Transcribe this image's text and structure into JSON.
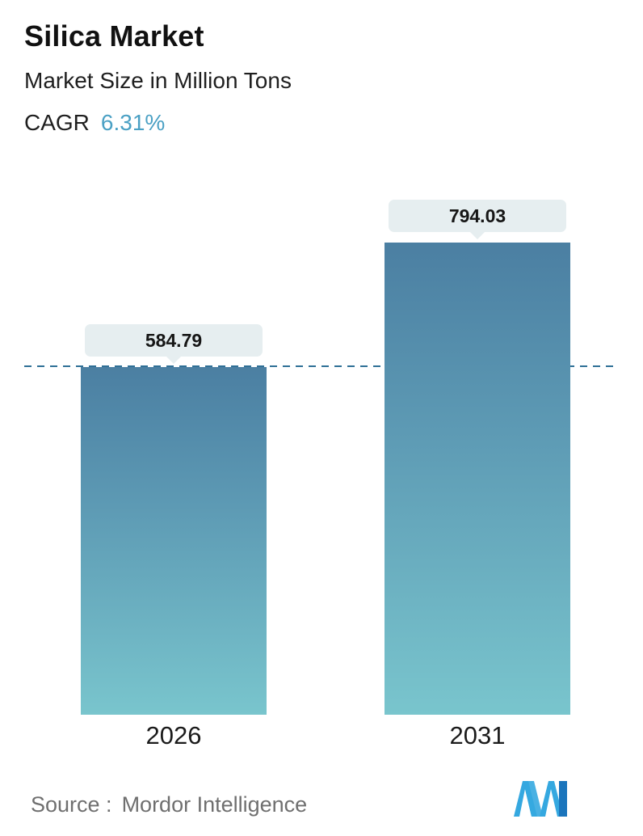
{
  "header": {
    "title": "Silica Market",
    "subtitle": "Market Size in Million Tons",
    "cagr_label": "CAGR",
    "cagr_value": "6.31%"
  },
  "chart_data": {
    "type": "bar",
    "categories": [
      "2026",
      "2031"
    ],
    "values": [
      584.79,
      794.03
    ],
    "value_labels": [
      "584.79",
      "794.03"
    ],
    "title": "Silica Market",
    "subtitle": "Market Size in Million Tons",
    "cagr": "6.31%",
    "xlabel": "",
    "ylabel": "Market Size in Million Tons",
    "ylim": [
      0,
      794.03
    ],
    "grid": false,
    "legend": "none",
    "reference_line": {
      "value": 584.79,
      "style": "dashed"
    }
  },
  "footer": {
    "source_label": "Source :",
    "source_value": "Mordor Intelligence",
    "logo_name": "mordor-intelligence-logo"
  },
  "colors": {
    "bar_gradient_top": "#4b7fa2",
    "bar_gradient_bottom": "#79c5cd",
    "dashed_line": "#2f7096",
    "cagr_accent": "#4aa0c4",
    "callout_background": "#e6eef0",
    "logo_light_blue": "#35a8e0",
    "logo_dark_blue": "#1b75bc"
  }
}
